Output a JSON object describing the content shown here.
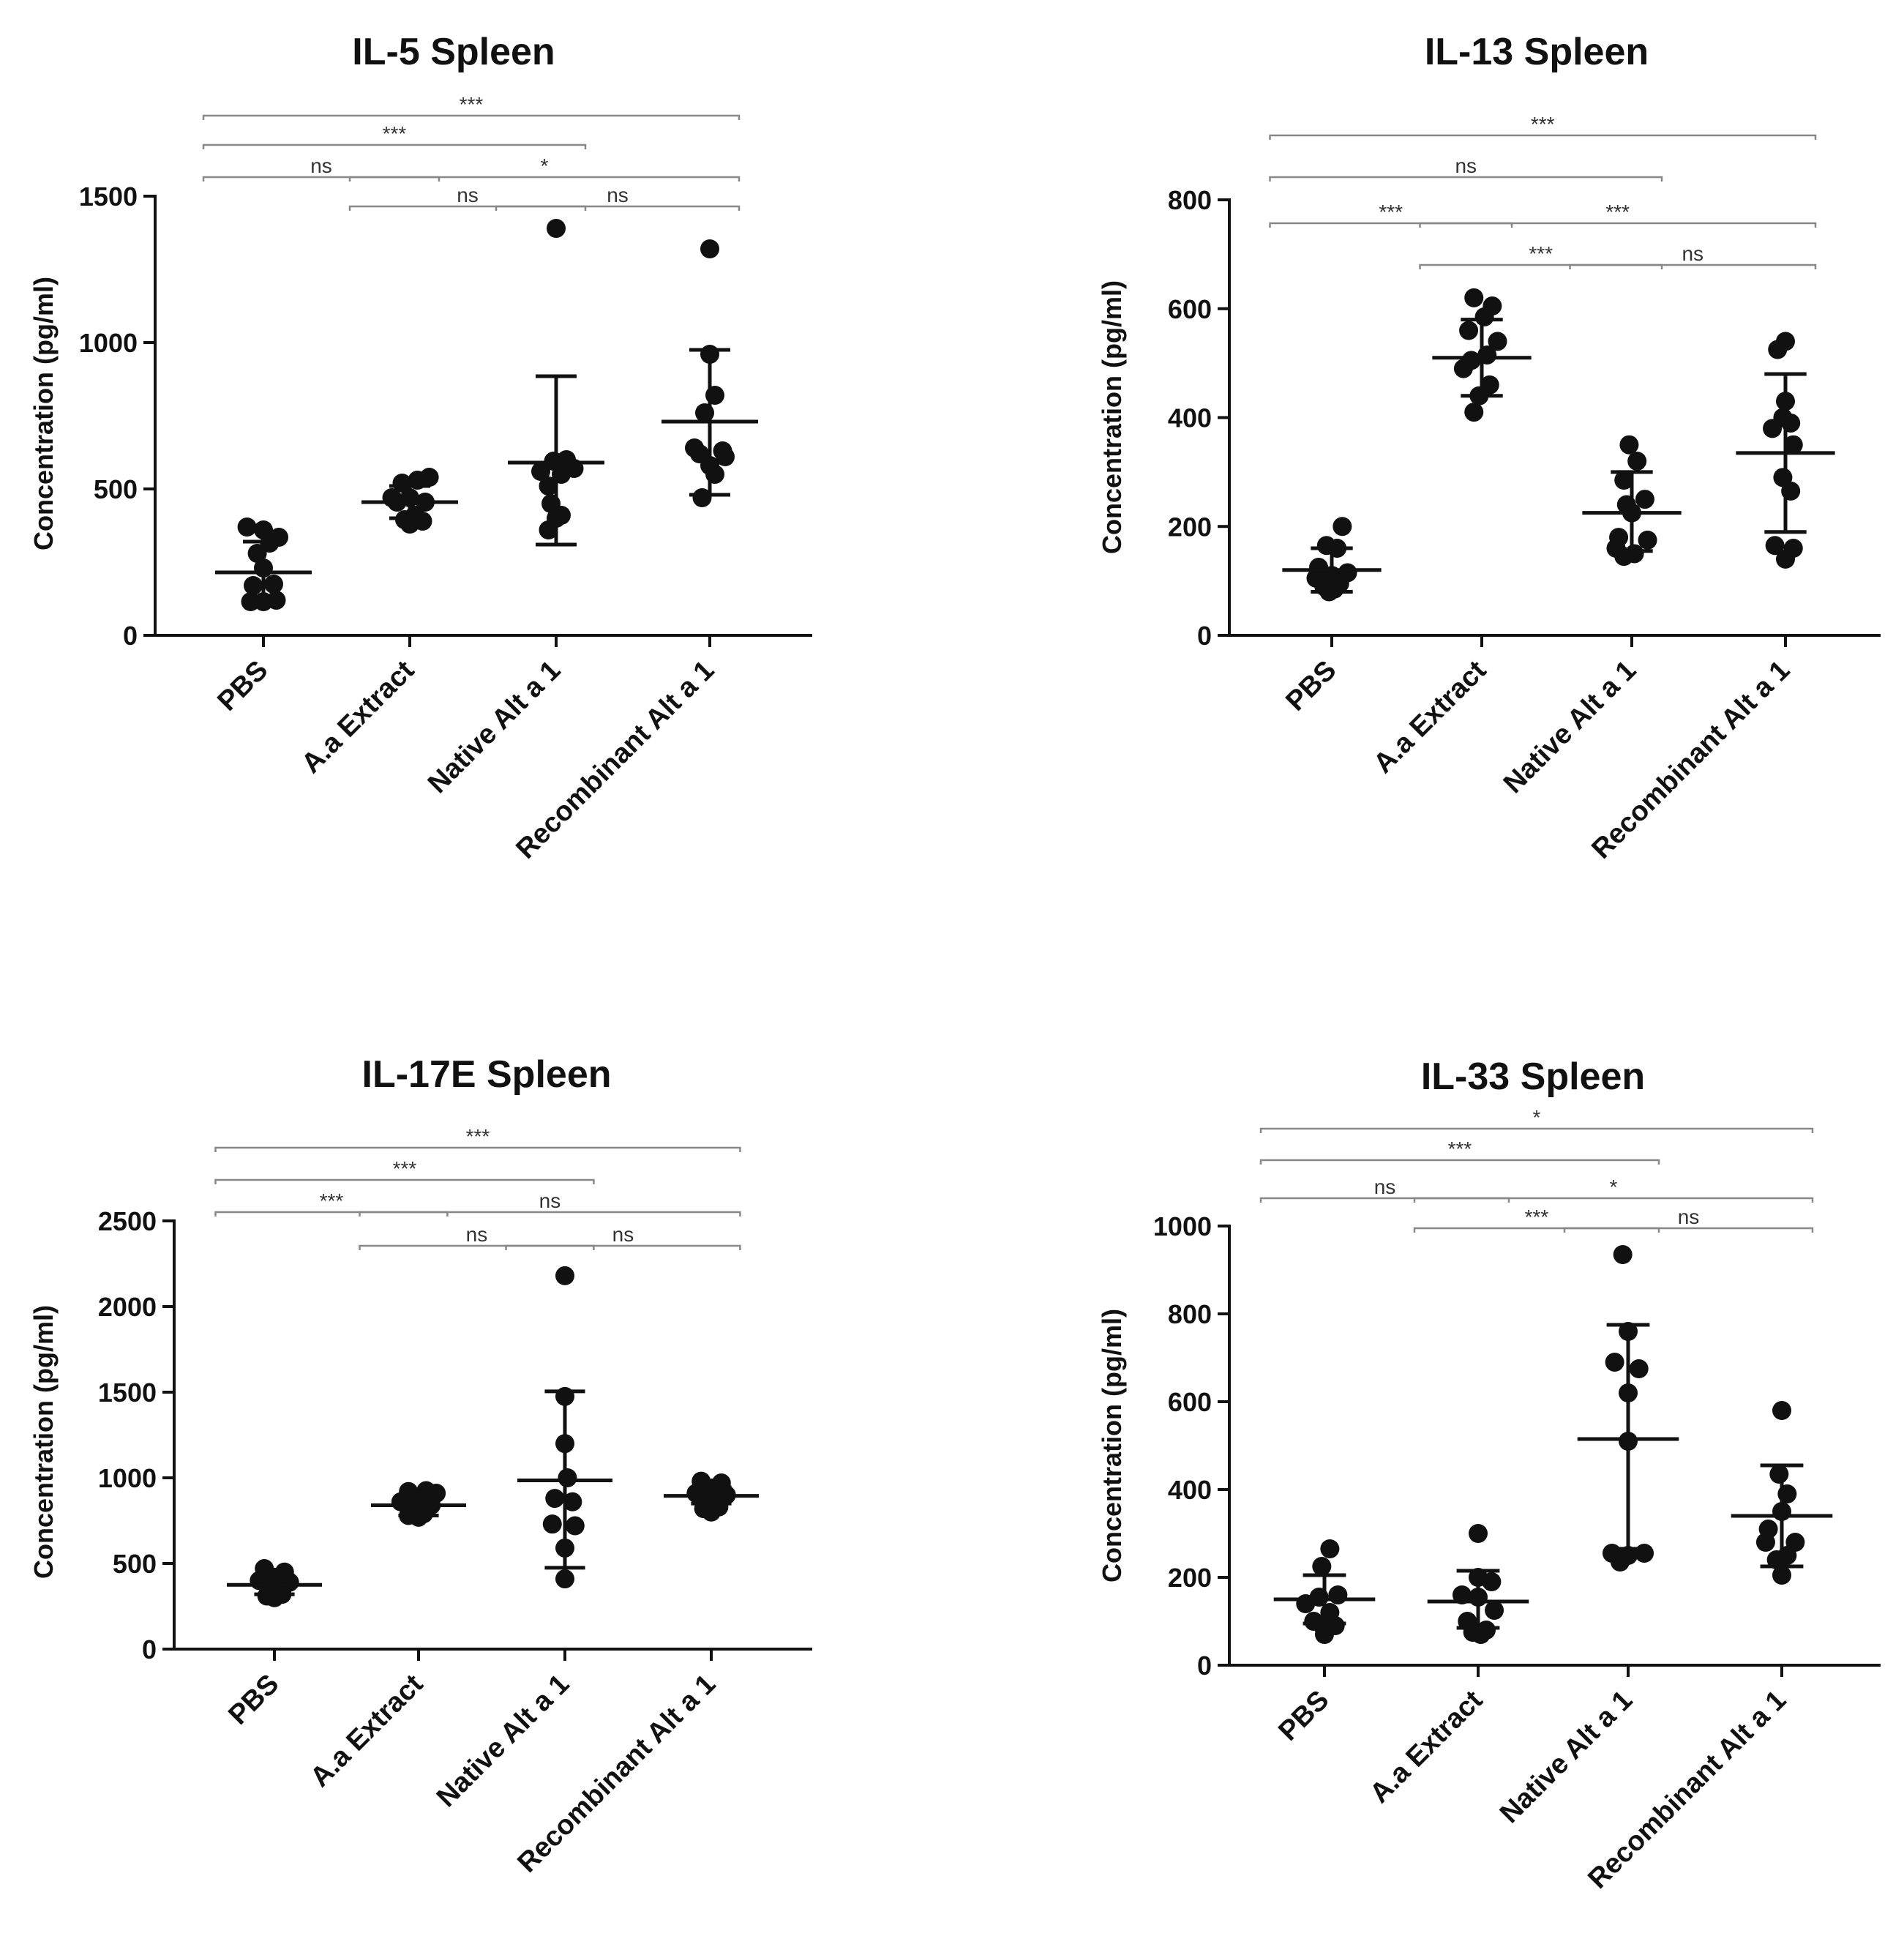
{
  "chart_data": [
    {
      "type": "scatter",
      "title": "IL-5 Spleen",
      "ylabel": "Concentration (pg/ml)",
      "ylim": [
        0,
        1500
      ],
      "yticks": [
        0,
        500,
        1000,
        1500
      ],
      "categories": [
        "PBS",
        "A.a Extract",
        "Native Alt a 1",
        "Recombinant Alt a 1"
      ],
      "groups": [
        {
          "mean": 215,
          "sd_low": 110,
          "sd_high": 320,
          "points": [
            [
              0.0,
              360
            ],
            [
              -0.32,
              370
            ],
            [
              0.3,
              335
            ],
            [
              0.12,
              315
            ],
            [
              -0.12,
              280
            ],
            [
              0.0,
              230
            ],
            [
              0.2,
              175
            ],
            [
              -0.2,
              170
            ],
            [
              0.25,
              120
            ],
            [
              0.0,
              115
            ],
            [
              -0.25,
              115
            ]
          ]
        },
        {
          "mean": 455,
          "sd_low": 400,
          "sd_high": 510,
          "points": [
            [
              -0.15,
              520
            ],
            [
              0.15,
              530
            ],
            [
              0.38,
              540
            ],
            [
              -0.35,
              470
            ],
            [
              0.0,
              470
            ],
            [
              0.3,
              455
            ],
            [
              -0.25,
              455
            ],
            [
              0.1,
              410
            ],
            [
              -0.1,
              395
            ],
            [
              0.25,
              390
            ],
            [
              0.0,
              380
            ]
          ]
        },
        {
          "mean": 590,
          "sd_low": 310,
          "sd_high": 885,
          "points": [
            [
              0.0,
              1390
            ],
            [
              -0.3,
              560
            ],
            [
              -0.05,
              595
            ],
            [
              0.2,
              600
            ],
            [
              0.35,
              570
            ],
            [
              0.1,
              550
            ],
            [
              -0.15,
              510
            ],
            [
              -0.1,
              450
            ],
            [
              0.1,
              410
            ],
            [
              0.0,
              400
            ],
            [
              -0.15,
              360
            ]
          ]
        },
        {
          "mean": 730,
          "sd_low": 480,
          "sd_high": 975,
          "points": [
            [
              0.0,
              1320
            ],
            [
              0.0,
              960
            ],
            [
              0.1,
              820
            ],
            [
              -0.1,
              760
            ],
            [
              -0.3,
              640
            ],
            [
              0.25,
              630
            ],
            [
              -0.2,
              620
            ],
            [
              0.3,
              610
            ],
            [
              0.0,
              580
            ],
            [
              0.1,
              550
            ],
            [
              -0.15,
              470
            ]
          ]
        }
      ],
      "comparisons": [
        {
          "from": 0,
          "to": 3,
          "label": "***",
          "row": 3
        },
        {
          "from": 0,
          "to": 2,
          "label": "***",
          "row": 2
        },
        {
          "from": 0,
          "to": 1,
          "label": "ns",
          "row": 1
        },
        {
          "from": 1,
          "to": 3,
          "label": "*",
          "row": 1
        },
        {
          "from": 1,
          "to": 2,
          "label": "ns",
          "row": 0
        },
        {
          "from": 2,
          "to": 3,
          "label": "ns",
          "row": 0
        }
      ]
    },
    {
      "type": "scatter",
      "title": "IL-13 Spleen",
      "ylabel": "Concentration (pg/ml)",
      "ylim": [
        0,
        800
      ],
      "yticks": [
        0,
        200,
        400,
        600,
        800
      ],
      "categories": [
        "PBS",
        "A.a Extract",
        "Native Alt a 1",
        "Recombinant Alt a 1"
      ],
      "groups": [
        {
          "mean": 120,
          "sd_low": 80,
          "sd_high": 160,
          "points": [
            [
              0.2,
              200
            ],
            [
              -0.1,
              165
            ],
            [
              0.1,
              160
            ],
            [
              -0.25,
              125
            ],
            [
              0.3,
              115
            ],
            [
              0.0,
              110
            ],
            [
              -0.3,
              105
            ],
            [
              0.15,
              95
            ],
            [
              -0.15,
              90
            ],
            [
              0.05,
              85
            ],
            [
              -0.05,
              80
            ]
          ]
        },
        {
          "mean": 510,
          "sd_low": 440,
          "sd_high": 580,
          "points": [
            [
              -0.15,
              620
            ],
            [
              0.2,
              605
            ],
            [
              0.05,
              585
            ],
            [
              -0.25,
              560
            ],
            [
              0.3,
              540
            ],
            [
              0.1,
              515
            ],
            [
              -0.2,
              505
            ],
            [
              -0.35,
              490
            ],
            [
              0.15,
              460
            ],
            [
              -0.05,
              440
            ],
            [
              -0.15,
              410
            ]
          ]
        },
        {
          "mean": 225,
          "sd_low": 155,
          "sd_high": 300,
          "points": [
            [
              -0.05,
              350
            ],
            [
              0.1,
              320
            ],
            [
              -0.15,
              285
            ],
            [
              0.25,
              250
            ],
            [
              -0.1,
              240
            ],
            [
              0.0,
              225
            ],
            [
              -0.25,
              180
            ],
            [
              0.3,
              175
            ],
            [
              -0.3,
              160
            ],
            [
              0.05,
              150
            ],
            [
              -0.15,
              145
            ]
          ]
        },
        {
          "mean": 335,
          "sd_low": 190,
          "sd_high": 480,
          "points": [
            [
              0.0,
              540
            ],
            [
              -0.15,
              525
            ],
            [
              0.0,
              430
            ],
            [
              -0.05,
              400
            ],
            [
              0.1,
              390
            ],
            [
              -0.25,
              380
            ],
            [
              0.15,
              350
            ],
            [
              -0.05,
              290
            ],
            [
              0.1,
              265
            ],
            [
              -0.2,
              165
            ],
            [
              0.15,
              160
            ],
            [
              0.0,
              140
            ]
          ]
        }
      ],
      "comparisons": [
        {
          "from": 0,
          "to": 3,
          "label": "***",
          "row": 3
        },
        {
          "from": 0,
          "to": 2,
          "label": "ns",
          "row": 2
        },
        {
          "from": 0,
          "to": 1,
          "label": "***",
          "row": 1
        },
        {
          "from": 1,
          "to": 3,
          "label": "***",
          "row": 1
        },
        {
          "from": 1,
          "to": 2,
          "label": "***",
          "row": 0
        },
        {
          "from": 2,
          "to": 3,
          "label": "ns",
          "row": 0
        }
      ]
    },
    {
      "type": "scatter",
      "title": "IL-17E Spleen",
      "ylabel": "Concentration (pg/ml)",
      "ylim": [
        0,
        2500
      ],
      "yticks": [
        0,
        500,
        1000,
        1500,
        2000,
        2500
      ],
      "categories": [
        "PBS",
        "A.a Extract",
        "Native Alt a 1",
        "Recombinant Alt a 1"
      ],
      "groups": [
        {
          "mean": 375,
          "sd_low": 320,
          "sd_high": 430,
          "points": [
            [
              -0.2,
              470
            ],
            [
              0.2,
              450
            ],
            [
              0.0,
              420
            ],
            [
              -0.3,
              400
            ],
            [
              0.3,
              390
            ],
            [
              0.1,
              370
            ],
            [
              -0.1,
              350
            ],
            [
              0.15,
              320
            ],
            [
              -0.15,
              310
            ],
            [
              0.0,
              300
            ]
          ]
        },
        {
          "mean": 840,
          "sd_low": 780,
          "sd_high": 900,
          "points": [
            [
              -0.2,
              920
            ],
            [
              0.15,
              925
            ],
            [
              0.35,
              910
            ],
            [
              -0.35,
              860
            ],
            [
              0.0,
              870
            ],
            [
              0.25,
              840
            ],
            [
              -0.1,
              820
            ],
            [
              0.1,
              790
            ],
            [
              -0.2,
              780
            ],
            [
              0.0,
              770
            ]
          ]
        },
        {
          "mean": 985,
          "sd_low": 475,
          "sd_high": 1505,
          "points": [
            [
              0.0,
              2180
            ],
            [
              0.0,
              1475
            ],
            [
              0.0,
              1200
            ],
            [
              0.05,
              1000
            ],
            [
              -0.2,
              880
            ],
            [
              0.15,
              860
            ],
            [
              -0.25,
              730
            ],
            [
              0.2,
              720
            ],
            [
              0.0,
              590
            ],
            [
              0.0,
              410
            ]
          ]
        },
        {
          "mean": 895,
          "sd_low": 850,
          "sd_high": 945,
          "points": [
            [
              -0.2,
              980
            ],
            [
              0.2,
              970
            ],
            [
              0.0,
              940
            ],
            [
              -0.3,
              910
            ],
            [
              0.3,
              900
            ],
            [
              0.1,
              880
            ],
            [
              -0.1,
              860
            ],
            [
              0.15,
              830
            ],
            [
              -0.15,
              820
            ],
            [
              0.0,
              800
            ]
          ]
        }
      ],
      "comparisons": [
        {
          "from": 0,
          "to": 3,
          "label": "***",
          "row": 3
        },
        {
          "from": 0,
          "to": 2,
          "label": "***",
          "row": 2
        },
        {
          "from": 0,
          "to": 1,
          "label": "***",
          "row": 1
        },
        {
          "from": 1,
          "to": 3,
          "label": "ns",
          "row": 1
        },
        {
          "from": 1,
          "to": 2,
          "label": "ns",
          "row": 0
        },
        {
          "from": 2,
          "to": 3,
          "label": "ns",
          "row": 0
        }
      ]
    },
    {
      "type": "scatter",
      "title": "IL-33 Spleen",
      "ylabel": "Concentration (pg/ml)",
      "ylim": [
        0,
        1000
      ],
      "yticks": [
        0,
        200,
        400,
        600,
        800,
        1000
      ],
      "categories": [
        "PBS",
        "A.a Extract",
        "Native Alt a 1",
        "Recombinant Alt a 1"
      ],
      "groups": [
        {
          "mean": 150,
          "sd_low": 95,
          "sd_high": 205,
          "points": [
            [
              0.1,
              265
            ],
            [
              -0.05,
              225
            ],
            [
              0.25,
              160
            ],
            [
              -0.1,
              155
            ],
            [
              -0.35,
              140
            ],
            [
              0.1,
              120
            ],
            [
              -0.2,
              100
            ],
            [
              0.2,
              90
            ],
            [
              0.0,
              80
            ],
            [
              0.0,
              70
            ]
          ]
        },
        {
          "mean": 145,
          "sd_low": 85,
          "sd_high": 215,
          "points": [
            [
              0.0,
              300
            ],
            [
              0.0,
              200
            ],
            [
              0.25,
              190
            ],
            [
              -0.3,
              160
            ],
            [
              0.0,
              155
            ],
            [
              0.3,
              125
            ],
            [
              -0.2,
              100
            ],
            [
              0.15,
              80
            ],
            [
              -0.1,
              75
            ],
            [
              0.05,
              70
            ]
          ]
        },
        {
          "mean": 515,
          "sd_low": 265,
          "sd_high": 775,
          "points": [
            [
              -0.1,
              935
            ],
            [
              0.0,
              760
            ],
            [
              -0.25,
              690
            ],
            [
              0.2,
              675
            ],
            [
              0.0,
              620
            ],
            [
              0.0,
              510
            ],
            [
              -0.3,
              255
            ],
            [
              0.3,
              255
            ],
            [
              0.0,
              250
            ],
            [
              -0.15,
              235
            ]
          ]
        },
        {
          "mean": 340,
          "sd_low": 225,
          "sd_high": 455,
          "points": [
            [
              0.0,
              580
            ],
            [
              -0.05,
              435
            ],
            [
              0.1,
              390
            ],
            [
              0.0,
              350
            ],
            [
              -0.25,
              310
            ],
            [
              -0.3,
              280
            ],
            [
              0.25,
              280
            ],
            [
              0.1,
              250
            ],
            [
              -0.1,
              240
            ],
            [
              0.0,
              205
            ]
          ]
        }
      ],
      "comparisons": [
        {
          "from": 0,
          "to": 3,
          "label": "*",
          "row": 3
        },
        {
          "from": 0,
          "to": 2,
          "label": "***",
          "row": 2
        },
        {
          "from": 0,
          "to": 1,
          "label": "ns",
          "row": 1
        },
        {
          "from": 1,
          "to": 3,
          "label": "*",
          "row": 1
        },
        {
          "from": 1,
          "to": 2,
          "label": "***",
          "row": 0
        },
        {
          "from": 2,
          "to": 3,
          "label": "ns",
          "row": 0
        }
      ]
    }
  ]
}
